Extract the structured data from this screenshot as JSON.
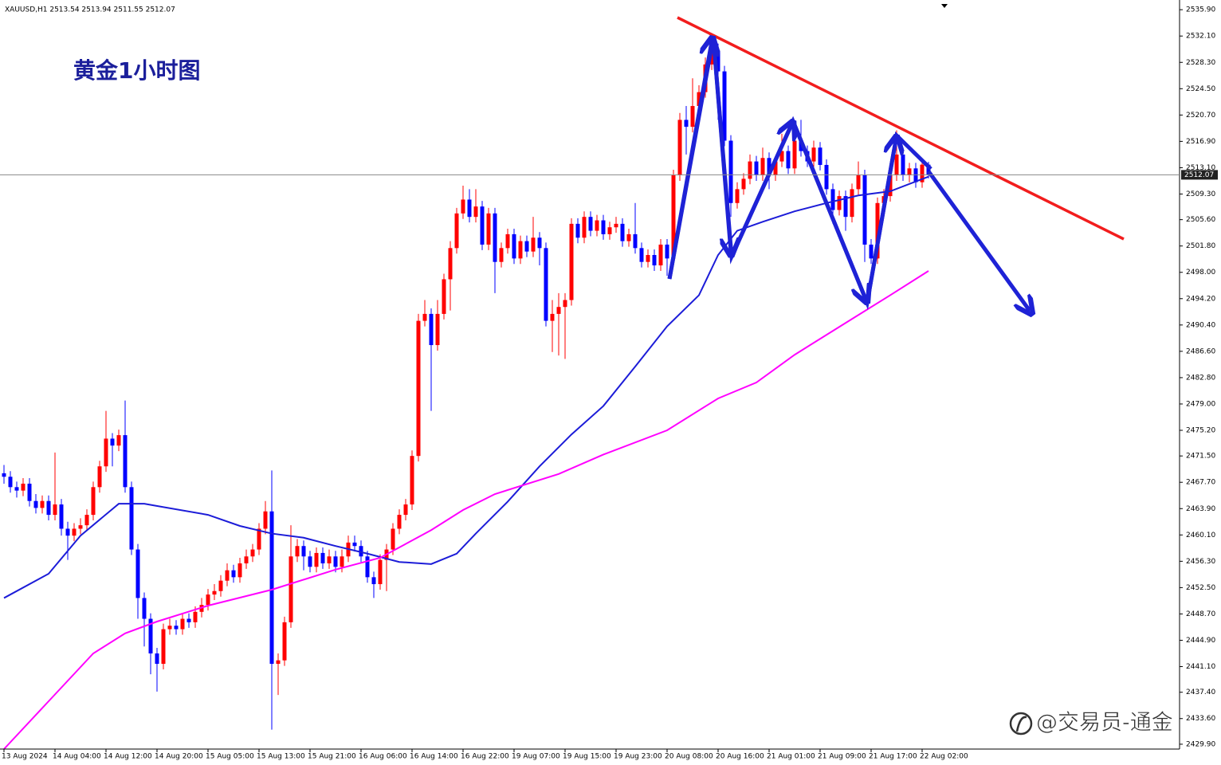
{
  "chart_data": {
    "type": "candlestick",
    "header": "XAUUSD,H1  2513.54 2513.94 2511.55 2512.07",
    "title": "黄金1小时图",
    "watermark": "@交易员-通金",
    "up_color": "#ff0000",
    "down_color": "#0000ff",
    "current_price": 2512.07,
    "ylim": [
      2429.2,
      2537.3
    ],
    "yticks": [
      {
        "value": 2535.9,
        "label": "2535.90"
      },
      {
        "value": 2532.1,
        "label": "2532.10"
      },
      {
        "value": 2528.3,
        "label": "2528.30"
      },
      {
        "value": 2524.5,
        "label": "2524.50"
      },
      {
        "value": 2520.7,
        "label": "2520.70"
      },
      {
        "value": 2516.9,
        "label": "2516.90"
      },
      {
        "value": 2513.1,
        "label": "2513.10"
      },
      {
        "value": 2509.3,
        "label": "2509.30"
      },
      {
        "value": 2505.6,
        "label": "2505.60"
      },
      {
        "value": 2501.8,
        "label": "2501.80"
      },
      {
        "value": 2498.0,
        "label": "2498.00"
      },
      {
        "value": 2494.2,
        "label": "2494.20"
      },
      {
        "value": 2490.4,
        "label": "2490.40"
      },
      {
        "value": 2486.6,
        "label": "2486.60"
      },
      {
        "value": 2482.8,
        "label": "2482.80"
      },
      {
        "value": 2479.0,
        "label": "2479.00"
      },
      {
        "value": 2475.2,
        "label": "2475.20"
      },
      {
        "value": 2471.5,
        "label": "2471.50"
      },
      {
        "value": 2467.7,
        "label": "2467.70"
      },
      {
        "value": 2463.9,
        "label": "2463.90"
      },
      {
        "value": 2460.1,
        "label": "2460.10"
      },
      {
        "value": 2456.3,
        "label": "2456.30"
      },
      {
        "value": 2452.5,
        "label": "2452.50"
      },
      {
        "value": 2448.7,
        "label": "2448.70"
      },
      {
        "value": 2444.9,
        "label": "2444.90"
      },
      {
        "value": 2441.1,
        "label": "2441.10"
      },
      {
        "value": 2437.4,
        "label": "2437.40"
      },
      {
        "value": 2433.6,
        "label": "2433.60"
      },
      {
        "value": 2429.9,
        "label": "2429.90"
      }
    ],
    "categories": [
      "13 Aug 2024",
      null,
      null,
      null,
      null,
      null,
      null,
      null,
      "14 Aug 04:00",
      null,
      null,
      null,
      null,
      null,
      null,
      null,
      "14 Aug 12:00",
      null,
      null,
      null,
      null,
      null,
      null,
      null,
      "14 Aug 20:00",
      null,
      null,
      null,
      null,
      null,
      null,
      null,
      "15 Aug 05:00",
      null,
      null,
      null,
      null,
      null,
      null,
      null,
      "15 Aug 13:00",
      null,
      null,
      null,
      null,
      null,
      null,
      null,
      "15 Aug 21:00",
      null,
      null,
      null,
      null,
      null,
      null,
      null,
      "16 Aug 06:00",
      null,
      null,
      null,
      null,
      null,
      null,
      null,
      "16 Aug 14:00",
      null,
      null,
      null,
      null,
      null,
      null,
      null,
      "16 Aug 22:00",
      null,
      null,
      null,
      null,
      null,
      null,
      null,
      "19 Aug 07:00",
      null,
      null,
      null,
      null,
      null,
      null,
      null,
      "19 Aug 15:00",
      null,
      null,
      null,
      null,
      null,
      null,
      null,
      "19 Aug 23:00",
      null,
      null,
      null,
      null,
      null,
      null,
      null,
      "20 Aug 08:00",
      null,
      null,
      null,
      null,
      null,
      null,
      null,
      "20 Aug 16:00",
      null,
      null,
      null,
      null,
      null,
      null,
      null,
      "21 Aug 01:00",
      null,
      null,
      null,
      null,
      null,
      null,
      null,
      "21 Aug 09:00",
      null,
      null,
      null,
      null,
      null,
      null,
      null,
      "21 Aug 17:00",
      null,
      null,
      null,
      null,
      null,
      null,
      null,
      "22 Aug 02:00",
      null
    ],
    "open": [
      2469,
      2468.5,
      2467,
      2466.5,
      2467.5,
      2465,
      2464,
      2465,
      2463,
      2464.5,
      2461,
      2460,
      2461,
      2461.5,
      2463,
      2467,
      2470,
      2474,
      2473,
      2474.5,
      2467,
      2458,
      2451,
      2448,
      2443,
      2441.5,
      2446.5,
      2447,
      2446.5,
      2448,
      2447.5,
      2449,
      2450,
      2451.5,
      2452,
      2453.5,
      2455,
      2454,
      2456,
      2457,
      2458,
      2461,
      2463.5,
      2441.5,
      2442,
      2447.5,
      2457,
      2458.5,
      2457,
      2455.5,
      2457.5,
      2456,
      2457,
      2455.5,
      2457,
      2459,
      2458.5,
      2457,
      2454,
      2453,
      2456.5,
      2458,
      2461,
      2463,
      2464.5,
      2471.5,
      2491,
      2492,
      2487.5,
      2492,
      2497,
      2501.5,
      2506.5,
      2508.5,
      2506,
      2507.5,
      2502,
      2506.5,
      2499.5,
      2501.5,
      2503.5,
      2500,
      2502.5,
      2501,
      2503,
      2501.5,
      2491,
      2492,
      2493,
      2494,
      2505,
      2503,
      2506,
      2504,
      2505.5,
      2503.5,
      2504.5,
      2505,
      2502.5,
      2503.5,
      2501.5,
      2499.5,
      2500.5,
      2499,
      2502,
      2500,
      2512,
      2520,
      2519,
      2522,
      2524,
      2528,
      2530,
      2527,
      2517,
      2508,
      2510,
      2511.5,
      2514,
      2512,
      2514.5,
      2512,
      2514,
      2515.5,
      2513,
      2517,
      2515.5,
      2514,
      2516,
      2513.5,
      2510,
      2507,
      2509,
      2506,
      2510,
      2512,
      2502,
      2500,
      2508,
      2509,
      2512,
      2515,
      2512,
      2513,
      2511,
      2513.54
    ],
    "high": [
      2470.2,
      2469.3,
      2467.8,
      2468.3,
      2468.3,
      2466,
      2465.8,
      2465.8,
      2472,
      2465.3,
      2462,
      2461.8,
      2462.5,
      2463.8,
      2467.8,
      2470.8,
      2478,
      2474.8,
      2475.3,
      2479.5,
      2467.8,
      2458.8,
      2451.8,
      2448.8,
      2443.8,
      2447.3,
      2448,
      2447.8,
      2448.8,
      2448.8,
      2449.8,
      2451,
      2452.3,
      2453,
      2454.3,
      2456,
      2455.8,
      2456.8,
      2458,
      2458.8,
      2461.8,
      2465,
      2469.4,
      2443,
      2448.3,
      2461.5,
      2459.5,
      2459.3,
      2457.8,
      2458.3,
      2458.3,
      2458,
      2457.8,
      2458,
      2460,
      2460,
      2459.3,
      2457.8,
      2454.8,
      2457.3,
      2458.8,
      2461.8,
      2463.8,
      2465.3,
      2472.3,
      2492,
      2494,
      2492.8,
      2494,
      2497.8,
      2502.5,
      2507.3,
      2510.5,
      2510,
      2510,
      2508.3,
      2507.3,
      2507.3,
      2502.3,
      2504.3,
      2504.3,
      2503.3,
      2503.3,
      2506,
      2503.8,
      2502.3,
      2494,
      2495,
      2495,
      2505.8,
      2505.8,
      2506.8,
      2506.8,
      2506.3,
      2506.3,
      2505.3,
      2506,
      2505.8,
      2504.3,
      2508,
      2502.3,
      2501.3,
      2501.3,
      2502.8,
      2502.8,
      2512.8,
      2521,
      2522,
      2526,
      2525,
      2529,
      2532,
      2531,
      2527.8,
      2517.8,
      2511,
      2512.3,
      2515,
      2514.8,
      2516,
      2515.3,
      2514.8,
      2518,
      2516.3,
      2518,
      2520,
      2516.3,
      2517,
      2516.8,
      2514.3,
      2510.8,
      2509.8,
      2509.8,
      2510.8,
      2514,
      2512.8,
      2502.8,
      2508.8,
      2510,
      2513,
      2518.5,
      2515.8,
      2513.8,
      2513.8,
      2514.3,
      2513.94
    ],
    "low": [
      2467.5,
      2466.2,
      2465.5,
      2465.7,
      2464.2,
      2463.2,
      2463.2,
      2462.2,
      2462.2,
      2460,
      2456.5,
      2459.2,
      2460.2,
      2460.7,
      2462.2,
      2466.2,
      2469.2,
      2470,
      2472.2,
      2466.2,
      2457.2,
      2448,
      2444,
      2440,
      2437.5,
      2440.7,
      2445.7,
      2445.7,
      2445.7,
      2446.7,
      2446.7,
      2448.2,
      2449.2,
      2450.7,
      2451.2,
      2452.7,
      2453.2,
      2453.2,
      2455.2,
      2456.2,
      2457.2,
      2460.2,
      2432,
      2437,
      2441.2,
      2446.7,
      2456.2,
      2455,
      2454.7,
      2454.7,
      2455.2,
      2455.2,
      2454.7,
      2454.7,
      2456.2,
      2457.7,
      2456.2,
      2453.2,
      2451,
      2452.2,
      2452,
      2457.2,
      2460.2,
      2462.2,
      2463.7,
      2470.7,
      2490.2,
      2478,
      2486.7,
      2491.2,
      2492.5,
      2500.7,
      2505.7,
      2505.2,
      2505.2,
      2501.2,
      2501.2,
      2495,
      2498.7,
      2500.7,
      2499.2,
      2499.2,
      2500.2,
      2500.2,
      2499,
      2490.2,
      2486.5,
      2486,
      2485.5,
      2493.2,
      2502.2,
      2502.2,
      2503.2,
      2503.2,
      2502.7,
      2502.7,
      2503.7,
      2501.7,
      2501.7,
      2500.7,
      2498.7,
      2498.7,
      2498.2,
      2498.2,
      2497.5,
      2499.2,
      2511.2,
      2515,
      2518.2,
      2521.2,
      2523.2,
      2527.2,
      2520,
      2516.2,
      2506,
      2507.2,
      2509.2,
      2510.7,
      2511.2,
      2511.2,
      2510,
      2511.2,
      2513.2,
      2512.2,
      2512.2,
      2514.7,
      2513.2,
      2513.2,
      2512.7,
      2509.2,
      2505,
      2506.2,
      2504,
      2505.2,
      2509.2,
      2499.5,
      2499.2,
      2499.2,
      2507.2,
      2508.2,
      2511.2,
      2511.2,
      2511,
      2510.2,
      2510.2,
      2511.55
    ],
    "close": [
      2468.5,
      2467,
      2466.5,
      2467.5,
      2465,
      2464,
      2465,
      2463,
      2464.5,
      2461,
      2460,
      2461,
      2461.5,
      2463,
      2467,
      2470,
      2474,
      2473,
      2474.5,
      2467,
      2458,
      2451,
      2448,
      2443,
      2441.5,
      2446.5,
      2447,
      2446.5,
      2448,
      2447.5,
      2449,
      2450,
      2451.5,
      2452,
      2453.5,
      2455,
      2454,
      2456,
      2457,
      2458,
      2461,
      2463.5,
      2441.5,
      2442,
      2447.5,
      2457,
      2458.5,
      2457,
      2455.5,
      2457.5,
      2456,
      2457,
      2455.5,
      2457,
      2459,
      2458.5,
      2457,
      2454,
      2453,
      2456.5,
      2458,
      2461,
      2463,
      2464.5,
      2471.5,
      2491,
      2492,
      2487.5,
      2492,
      2497,
      2501.5,
      2506.5,
      2508.5,
      2506,
      2507.5,
      2502,
      2506.5,
      2499.5,
      2501.5,
      2503.5,
      2500,
      2502.5,
      2501,
      2503,
      2501.5,
      2491,
      2492,
      2493,
      2494,
      2505,
      2503,
      2506,
      2504,
      2505.5,
      2503.5,
      2504.5,
      2505,
      2502.5,
      2503.5,
      2501.5,
      2499.5,
      2500.5,
      2499,
      2502,
      2500,
      2512,
      2520,
      2519,
      2522,
      2524,
      2528,
      2530,
      2527,
      2517,
      2508,
      2510,
      2511.5,
      2514,
      2512,
      2514.5,
      2512,
      2514,
      2515.5,
      2513,
      2517,
      2515.5,
      2514,
      2516,
      2513.5,
      2510,
      2507,
      2509,
      2506,
      2510,
      2512,
      2502,
      2500,
      2508,
      2509,
      2512,
      2515,
      2512,
      2513,
      2511,
      2513.54,
      2512.07
    ],
    "moving_averages": [
      {
        "color": "#1c1cd8",
        "x": [
          0,
          7,
          12,
          18,
          22,
          32,
          37,
          42,
          47,
          52,
          57,
          62,
          67,
          71,
          74,
          79,
          84,
          89,
          94,
          99,
          104,
          109,
          112,
          115,
          119,
          124,
          129,
          134,
          139,
          145
        ],
        "values": [
          2451,
          2454.5,
          2460,
          2464.6,
          2464.6,
          2463,
          2461.4,
          2460.3,
          2459.7,
          2458.5,
          2457.4,
          2456.2,
          2455.9,
          2457.4,
          2460.3,
          2464.9,
          2470,
          2474.6,
          2478.7,
          2484.4,
          2490.2,
          2494.7,
          2500.5,
          2504,
          2505.3,
          2506.8,
          2508,
          2509.1,
          2509.7,
          2511.8
        ]
      },
      {
        "color": "#ff00ff",
        "x": [
          0,
          7,
          14,
          19,
          24,
          32,
          42,
          52,
          59,
          67,
          72,
          77,
          87,
          94,
          104,
          112,
          118,
          124,
          132,
          139,
          145
        ],
        "values": [
          2429.2,
          2436.1,
          2443,
          2445.9,
          2447.6,
          2449.9,
          2452.2,
          2455.1,
          2456.8,
          2460.8,
          2463.7,
          2466,
          2468.9,
          2471.7,
          2475.2,
          2479.8,
          2482.1,
          2486.1,
          2490.7,
          2494.7,
          2498.2
        ]
      }
    ]
  }
}
